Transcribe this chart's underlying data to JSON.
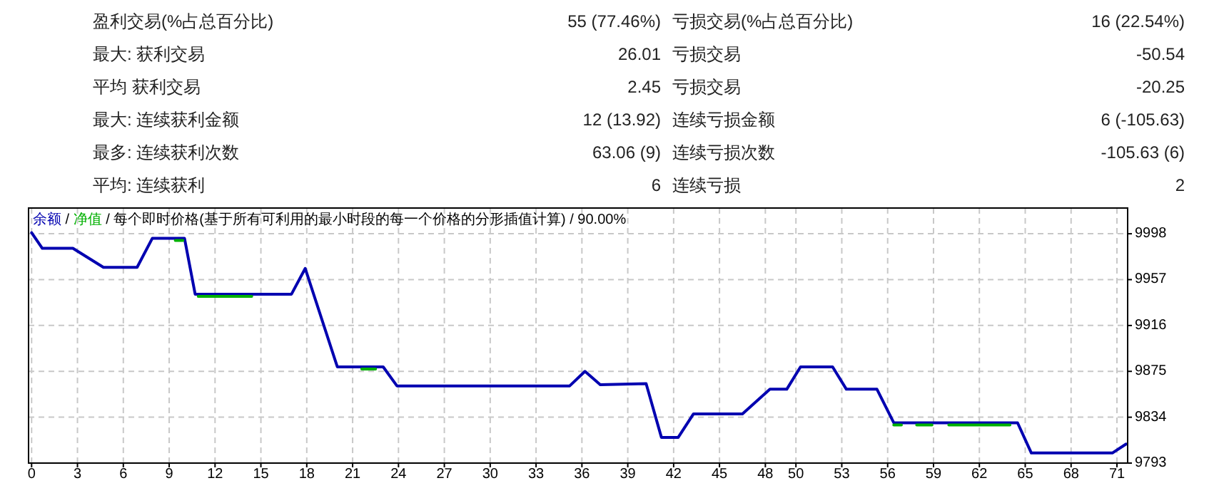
{
  "chart_data": [
    {
      "type": "other",
      "annotations": [
        "盈利交易(%占总百分比)",
        "55 (77.46%)",
        "亏损交易(%占总百分比)",
        "16 (22.54%)",
        "最大: 获利交易",
        "26.01",
        "亏损交易",
        "-50.54",
        "平均 获利交易",
        "2.45",
        "亏损交易",
        "-20.25",
        "最大: 连续获利金额",
        "12 (13.92)",
        "连续亏损金额",
        "6 (-105.63)",
        "最多: 连续获利次数",
        "63.06 (9)",
        "连续亏损次数",
        "-105.63 (6)",
        "平均: 连续获利",
        "6",
        "连续亏损",
        "2"
      ]
    },
    {
      "type": "line",
      "annotations": [
        "/",
        "/ 每个即时价格(基于所有可利用的最小时段的每一个价格的分形插值计算) / 90.00%"
      ],
      "legend": "top left",
      "grid": true,
      "xlim": [
        -0.2,
        71.7
      ],
      "ylim": [
        9793,
        10021
      ],
      "xticks": [
        0,
        3,
        6,
        9,
        12,
        15,
        18,
        21,
        24,
        27,
        30,
        33,
        36,
        39,
        42,
        45,
        48,
        50,
        53,
        56,
        59,
        62,
        65,
        68,
        71
      ],
      "yticks": [
        9793,
        9834,
        9875,
        9916,
        9957,
        9998
      ],
      "series": [
        {
          "name": "余额",
          "color": "#0000b0",
          "x": [
            0,
            0.7,
            2.7,
            4.7,
            6.9,
            7.9,
            10.0,
            10.7,
            17.0,
            17.9,
            20.0,
            23.0,
            23.9,
            35.2,
            36.2,
            37.2,
            40.2,
            41.2,
            42.3,
            43.3,
            46.5,
            48.3,
            49.4,
            50.3,
            52.4,
            53.3,
            55.3,
            56.4,
            64.5,
            65.4,
            70.7,
            71.6
          ],
          "values": [
            9999,
            9985,
            9985,
            9968,
            9968,
            9994,
            9994,
            9944,
            9944,
            9967,
            9879,
            9879,
            9862,
            9862,
            9875,
            9863,
            9864,
            9816,
            9816,
            9837,
            9837,
            9859,
            9859,
            9879,
            9879,
            9859,
            9859,
            9829,
            9829,
            9802,
            9802,
            9810
          ]
        },
        {
          "name": "净值",
          "color": "#00b000",
          "x": [
            9.4,
            9.9,
            null,
            10.9,
            14.4,
            null,
            21.6,
            22.5,
            null,
            56.4,
            56.9,
            null,
            57.9,
            58.9,
            null,
            60.0,
            64.0
          ],
          "values": [
            9992,
            9992,
            null,
            9942,
            9942,
            null,
            9877,
            9877,
            null,
            9827,
            9827,
            null,
            9827,
            9827,
            null,
            9827,
            9827
          ]
        }
      ]
    }
  ]
}
